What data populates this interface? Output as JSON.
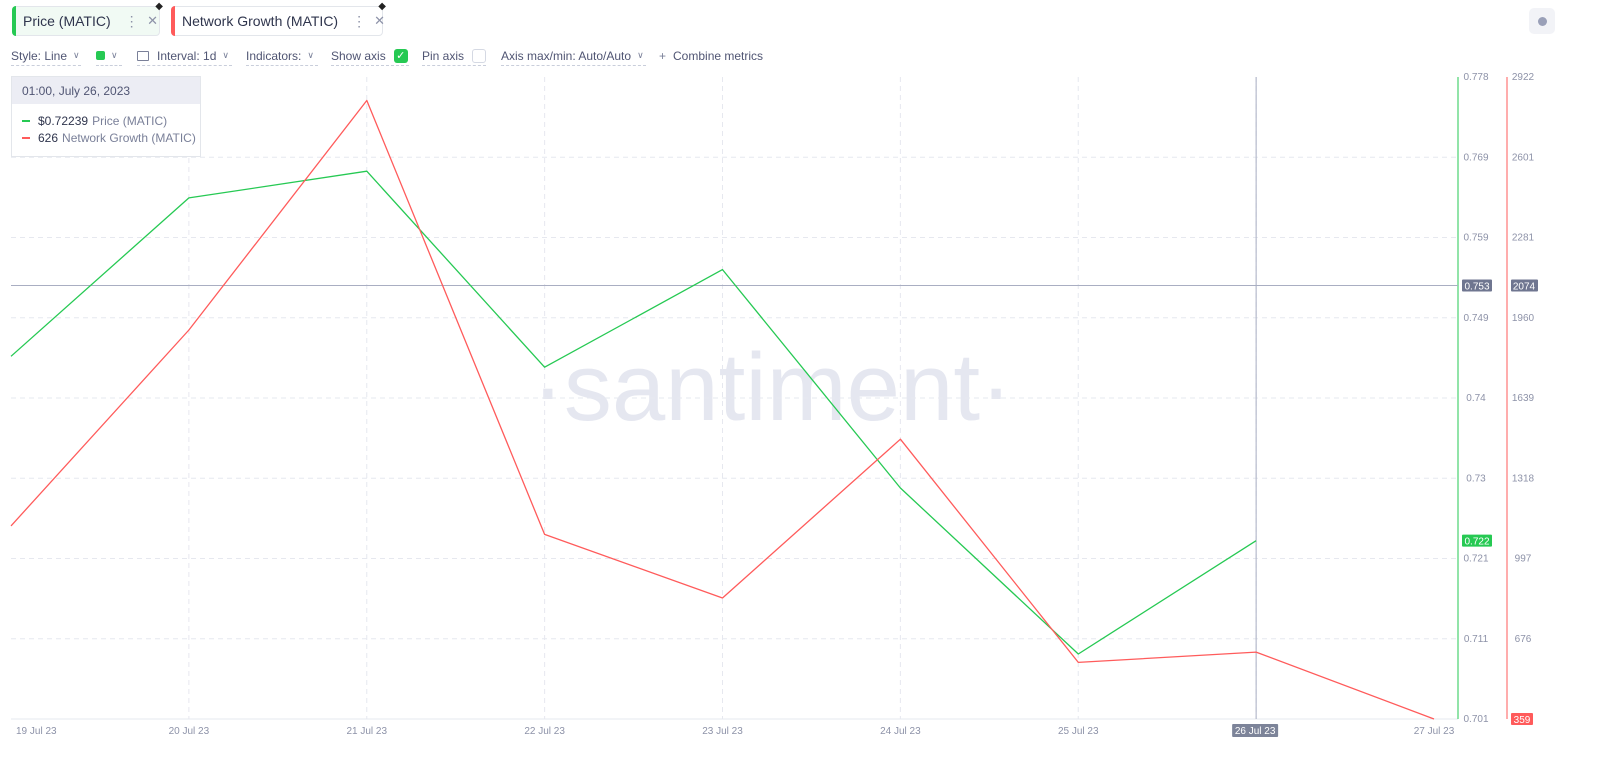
{
  "tabs": [
    {
      "label": "Price (MATIC)",
      "color": "#26c953"
    },
    {
      "label": "Network Growth (MATIC)",
      "color": "#ff5b5b"
    }
  ],
  "toolbar": {
    "style": "Style: Line",
    "interval": "Interval: 1d",
    "indicators": "Indicators:",
    "show_axis": "Show axis",
    "pin_axis": "Pin axis",
    "axis_maxmin": "Axis max/min: Auto/Auto",
    "combine": "Combine metrics",
    "color_swatch": "#26c953"
  },
  "tooltip": {
    "date": "01:00, July 26, 2023",
    "price_value": "$0.72239",
    "price_label": "Price (MATIC)",
    "growth_value": "626",
    "growth_label": "Network Growth (MATIC)"
  },
  "watermark": "·santiment·",
  "chart_data": {
    "type": "line",
    "x": [
      "19 Jul 23",
      "20 Jul 23",
      "21 Jul 23",
      "22 Jul 23",
      "23 Jul 23",
      "24 Jul 23",
      "25 Jul 23",
      "26 Jul 23",
      "27 Jul 23"
    ],
    "series": [
      {
        "name": "Price (MATIC)",
        "axis": "left",
        "color": "#26c953",
        "values": [
          0.7445,
          0.7635,
          0.7667,
          0.7432,
          0.7549,
          0.7287,
          0.7088,
          0.72239,
          null
        ]
      },
      {
        "name": "Network Growth (MATIC)",
        "axis": "right",
        "color": "#ff5b5b",
        "values": [
          1130,
          1912,
          2828,
          1096,
          842,
          1476,
          585,
          626,
          359
        ]
      }
    ],
    "y_left": {
      "ticks": [
        "0.778",
        "0.769",
        "0.759",
        "0.749",
        "0.74",
        "0.73",
        "0.721",
        "0.711",
        "0.701"
      ],
      "min": 0.701,
      "max": 0.778
    },
    "y_right": {
      "ticks": [
        "2922",
        "2601",
        "2281",
        "1960",
        "1639",
        "1318",
        "997",
        "676",
        "359"
      ],
      "min": 359,
      "max": 2922
    },
    "crosshair": {
      "x_label": "26 Jul 23",
      "left_value": "0.753",
      "right_value": "2074"
    },
    "last_value_left": "0.722",
    "last_value_right": "359",
    "grid": true
  }
}
